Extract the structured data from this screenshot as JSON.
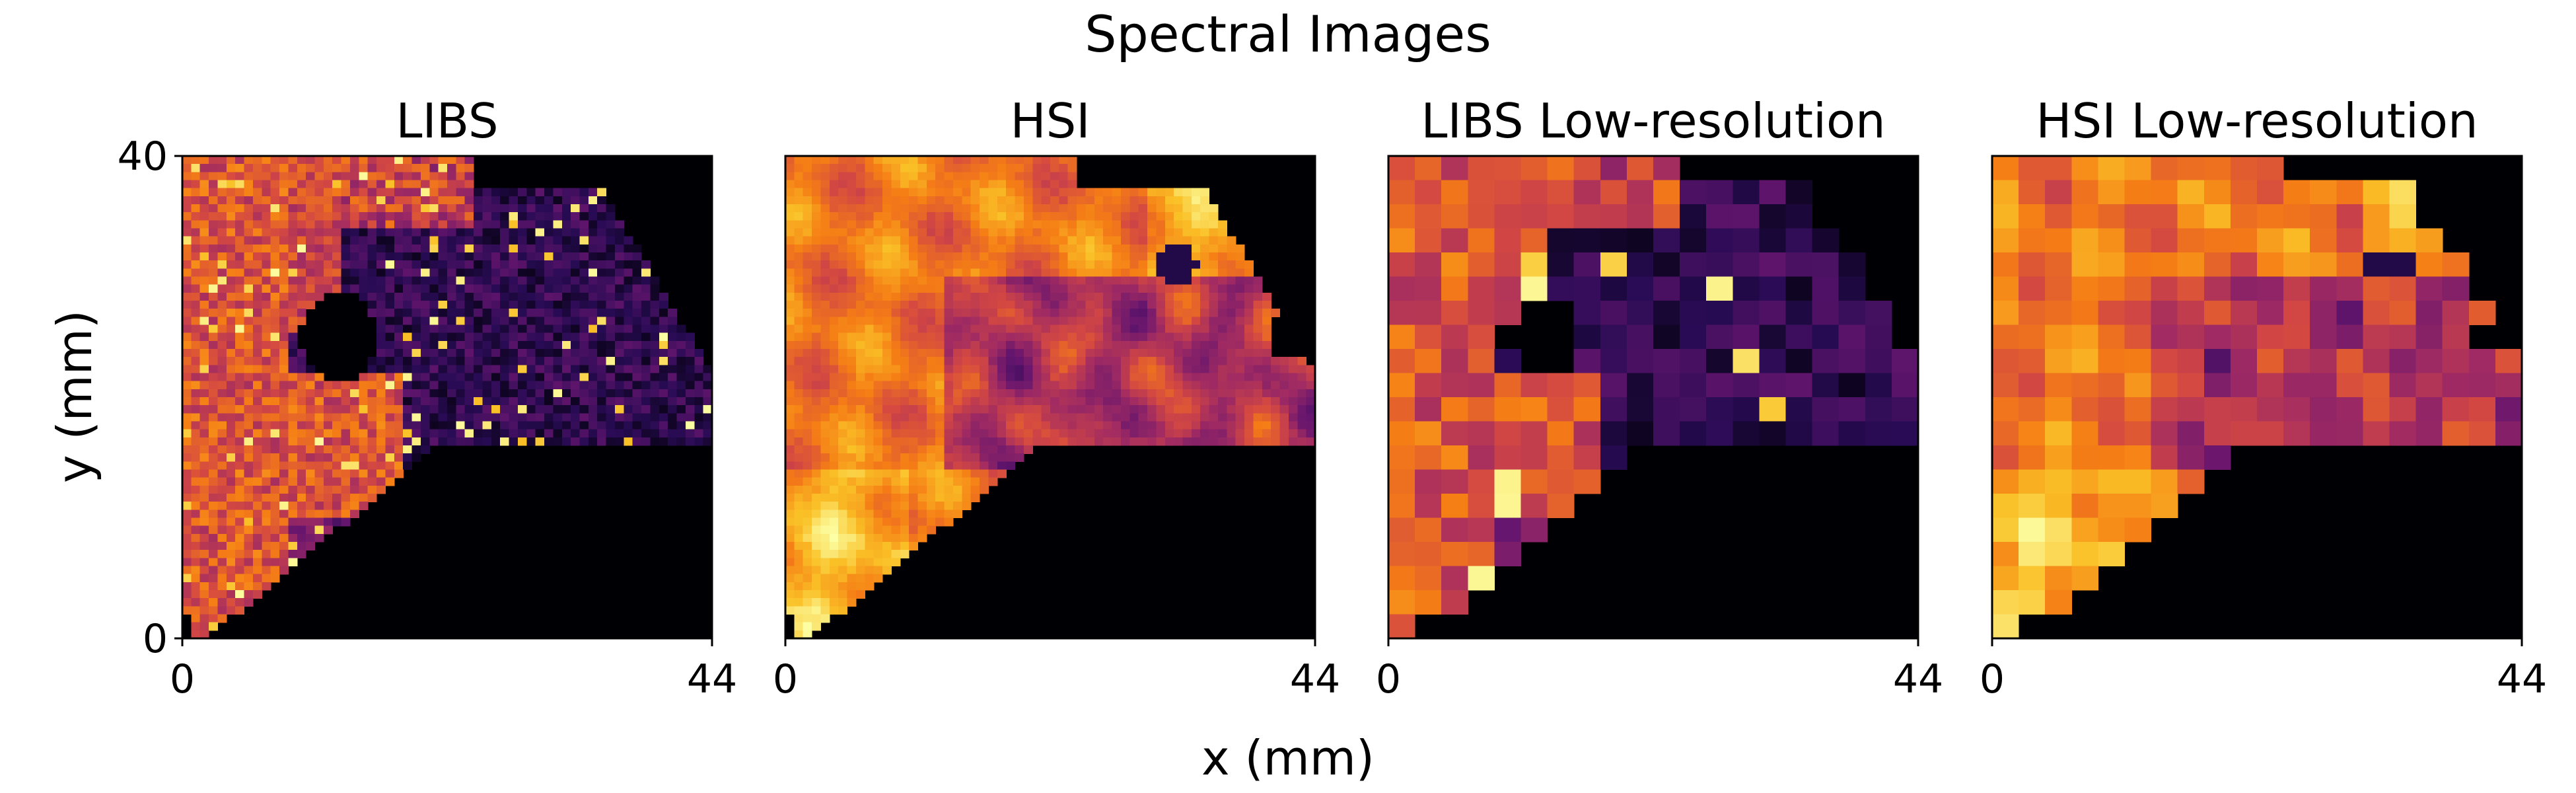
{
  "figure": {
    "title": "Spectral Images",
    "xlabel": "x (mm)",
    "ylabel": "y (mm)"
  },
  "chart_data": [
    {
      "type": "heatmap",
      "title": "LIBS",
      "colormap": "inferno",
      "xlim": [
        0,
        44
      ],
      "ylim": [
        0,
        40
      ],
      "xticks": [
        "0",
        "44"
      ],
      "yticks": [
        "0",
        "40"
      ],
      "grid": false
    },
    {
      "type": "heatmap",
      "title": "HSI",
      "colormap": "inferno",
      "xlim": [
        0,
        44
      ],
      "ylim": [
        0,
        40
      ],
      "xticks": [
        "0",
        "44"
      ],
      "yticks": [],
      "grid": false
    },
    {
      "type": "heatmap",
      "title": "LIBS Low-resolution",
      "colormap": "inferno",
      "xlim": [
        0,
        44
      ],
      "ylim": [
        0,
        40
      ],
      "xticks": [
        "0",
        "44"
      ],
      "yticks": [],
      "grid": false
    },
    {
      "type": "heatmap",
      "title": "HSI Low-resolution",
      "colormap": "inferno",
      "xlim": [
        0,
        44
      ],
      "ylim": [
        0,
        40
      ],
      "xticks": [
        "0",
        "44"
      ],
      "yticks": [],
      "grid": false
    }
  ]
}
